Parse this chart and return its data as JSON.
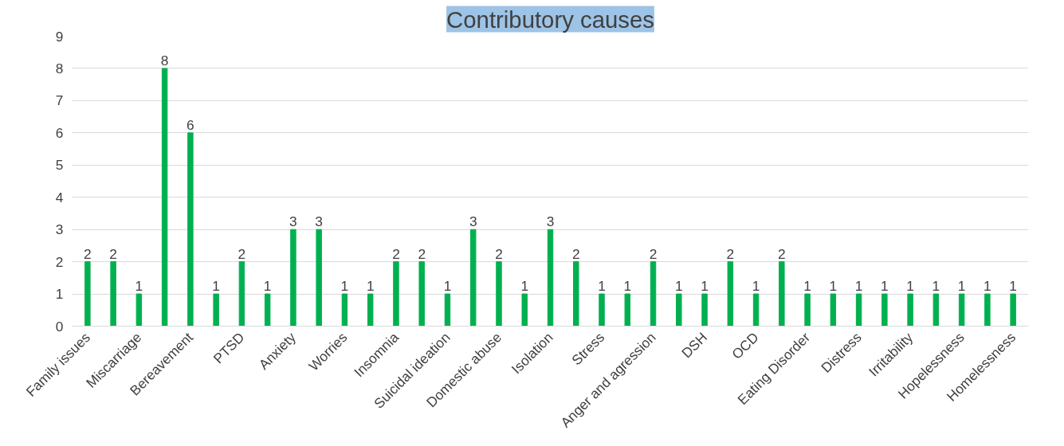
{
  "chart_data": {
    "type": "bar",
    "title": "Contributory causes",
    "categories": [
      "Family issues",
      null,
      "Miscarriage",
      null,
      "Bereavement",
      null,
      "PTSD",
      null,
      "Anxiety",
      null,
      "Worries",
      null,
      "Insomnia",
      null,
      "Suicidal ideation",
      null,
      "Domestic abuse",
      null,
      "Isolation",
      null,
      "Stress",
      null,
      "Anger and agression",
      null,
      "DSH",
      null,
      "OCD",
      null,
      "Eating Disorder",
      null,
      "Distress",
      null,
      "Irritability",
      null,
      "Hopelessness",
      null,
      "Homelessness"
    ],
    "values": [
      2,
      2,
      1,
      8,
      6,
      1,
      2,
      1,
      3,
      3,
      1,
      1,
      2,
      2,
      1,
      3,
      2,
      1,
      3,
      2,
      1,
      1,
      2,
      1,
      1,
      2,
      1,
      2,
      1,
      1,
      1,
      1,
      1,
      1,
      1,
      1,
      1
    ],
    "color": "#00b050",
    "ylim": [
      0,
      9
    ],
    "yticks": [
      0,
      1,
      2,
      3,
      4,
      5,
      6,
      7,
      8,
      9
    ],
    "grid": "y",
    "data_labels": true
  }
}
